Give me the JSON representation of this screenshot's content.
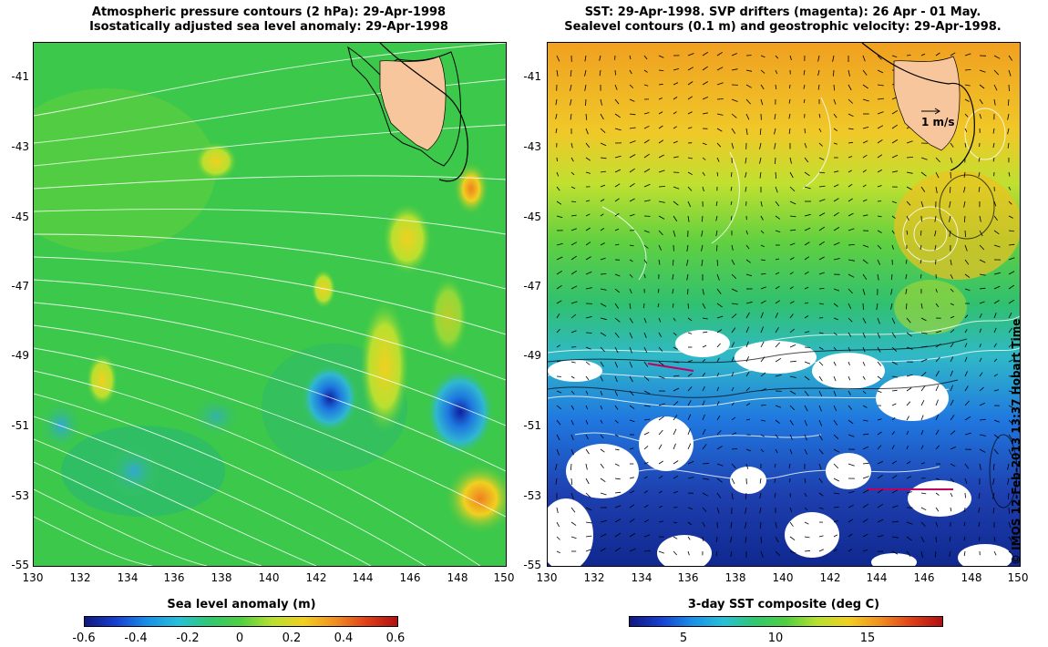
{
  "left_panel": {
    "title_line1": "Atmospheric pressure contours (2 hPa): 29-Apr-1998",
    "title_line2": "Isostatically adjusted sea level anomaly: 29-Apr-1998",
    "colorbar_label": "Sea level anomaly (m)",
    "colorbar_ticks": [
      "-0.6",
      "-0.4",
      "-0.2",
      "0",
      "0.2",
      "0.4",
      "0.6"
    ]
  },
  "right_panel": {
    "title_line1": "SST: 29-Apr-1998. SVP drifters (magenta): 26 Apr - 01 May.",
    "title_line2": "Sealevel contours (0.1 m) and geostrophic velocity: 29-Apr-1998.",
    "colorbar_label": "3-day SST composite (deg C)",
    "colorbar_ticks": [
      "5",
      "10",
      "15"
    ],
    "velocity_scale_label": "1 m/s"
  },
  "y_ticks": [
    "-41",
    "-43",
    "-45",
    "-47",
    "-49",
    "-51",
    "-53",
    "-55"
  ],
  "x_ticks": [
    "130",
    "132",
    "134",
    "136",
    "138",
    "140",
    "142",
    "144",
    "146",
    "148",
    "150"
  ],
  "credit": "© IMOS 12-Feb-2013 13:37 Hobart Time",
  "colors": {
    "land": "#f7c69c",
    "sla_background": "#3cc84a",
    "sst_warm": "#f0a020",
    "sst_cold": "#1e3ca0"
  }
}
